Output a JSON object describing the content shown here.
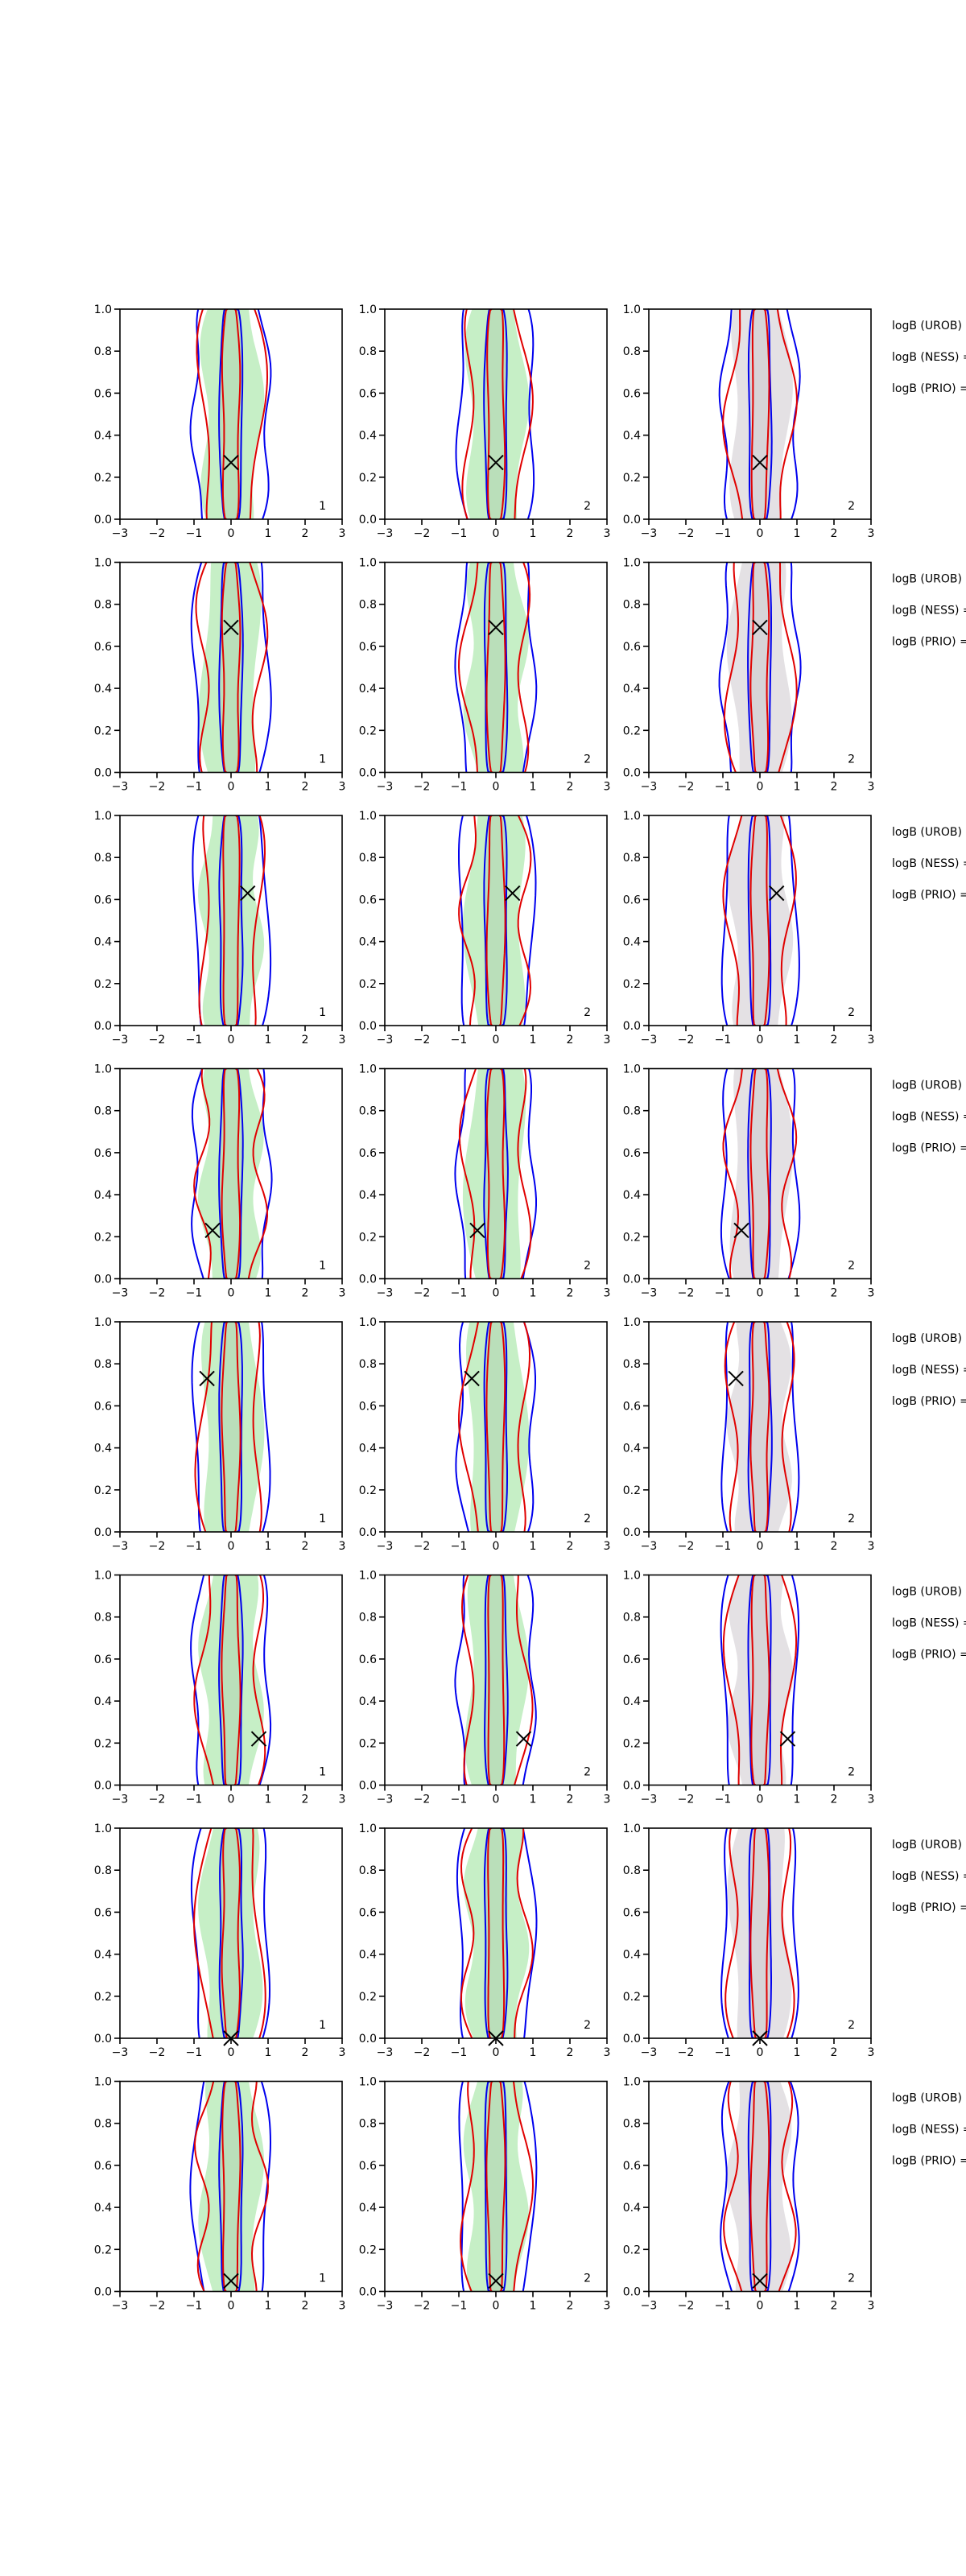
{
  "chart_data": {
    "type": "contour",
    "xlim": [
      -3,
      3
    ],
    "ylim": [
      0,
      1
    ],
    "xticks": [
      {
        "value": -3,
        "label": "−3"
      },
      {
        "value": -2,
        "label": "−2"
      },
      {
        "value": -1,
        "label": "−1"
      },
      0,
      1,
      2,
      3
    ],
    "yticks": [
      {
        "value": 0,
        "label": "0.0"
      },
      {
        "value": 0.2,
        "label": "0.2"
      },
      {
        "value": 0.4,
        "label": "0.4"
      },
      {
        "value": 0.6,
        "label": "0.6"
      },
      {
        "value": 0.8,
        "label": "0.8"
      },
      {
        "value": 1,
        "label": "1.0"
      }
    ],
    "rows": [
      {
        "marker": {
          "x": 0,
          "y": 0.27
        },
        "panel_labels": [
          "1",
          "2",
          "2"
        ],
        "annotations": [
          "logB (UROB) =",
          "logB (NESS) =",
          "logB (PRIO) ="
        ]
      },
      {
        "marker": {
          "x": 0,
          "y": 0.69
        },
        "panel_labels": [
          "1",
          "2",
          "2"
        ],
        "annotations": [
          "logB (UROB) =",
          "logB (NESS) =",
          "logB (PRIO) ="
        ]
      },
      {
        "marker": {
          "x": 0.45,
          "y": 0.63
        },
        "panel_labels": [
          "1",
          "2",
          "2"
        ],
        "annotations": [
          "logB (UROB) =",
          "logB (NESS) =",
          "logB (PRIO) ="
        ]
      },
      {
        "marker": {
          "x": -0.5,
          "y": 0.23
        },
        "panel_labels": [
          "1",
          "2",
          "2"
        ],
        "annotations": [
          "logB (UROB) =",
          "logB (NESS) =",
          "logB (PRIO) ="
        ]
      },
      {
        "marker": {
          "x": -0.65,
          "y": 0.73
        },
        "panel_labels": [
          "1",
          "2",
          "2"
        ],
        "annotations": [
          "logB (UROB) =",
          "logB (NESS) =",
          "logB (PRIO) ="
        ]
      },
      {
        "marker": {
          "x": 0.75,
          "y": 0.22
        },
        "panel_labels": [
          "1",
          "2",
          "2"
        ],
        "annotations": [
          "logB (UROB) =",
          "logB (NESS) =",
          "logB (PRIO) ="
        ]
      },
      {
        "marker": {
          "x": 0,
          "y": 0
        },
        "panel_labels": [
          "1",
          "2",
          "2"
        ],
        "annotations": [
          "logB (UROB) =",
          "logB (NESS) =",
          "logB (PRIO) ="
        ]
      },
      {
        "marker": {
          "x": 0,
          "y": 0.05
        },
        "panel_labels": [
          "1",
          "2",
          "2"
        ],
        "annotations": [
          "logB (UROB) =",
          "logB (NESS) =",
          "logB (PRIO) ="
        ]
      }
    ]
  }
}
